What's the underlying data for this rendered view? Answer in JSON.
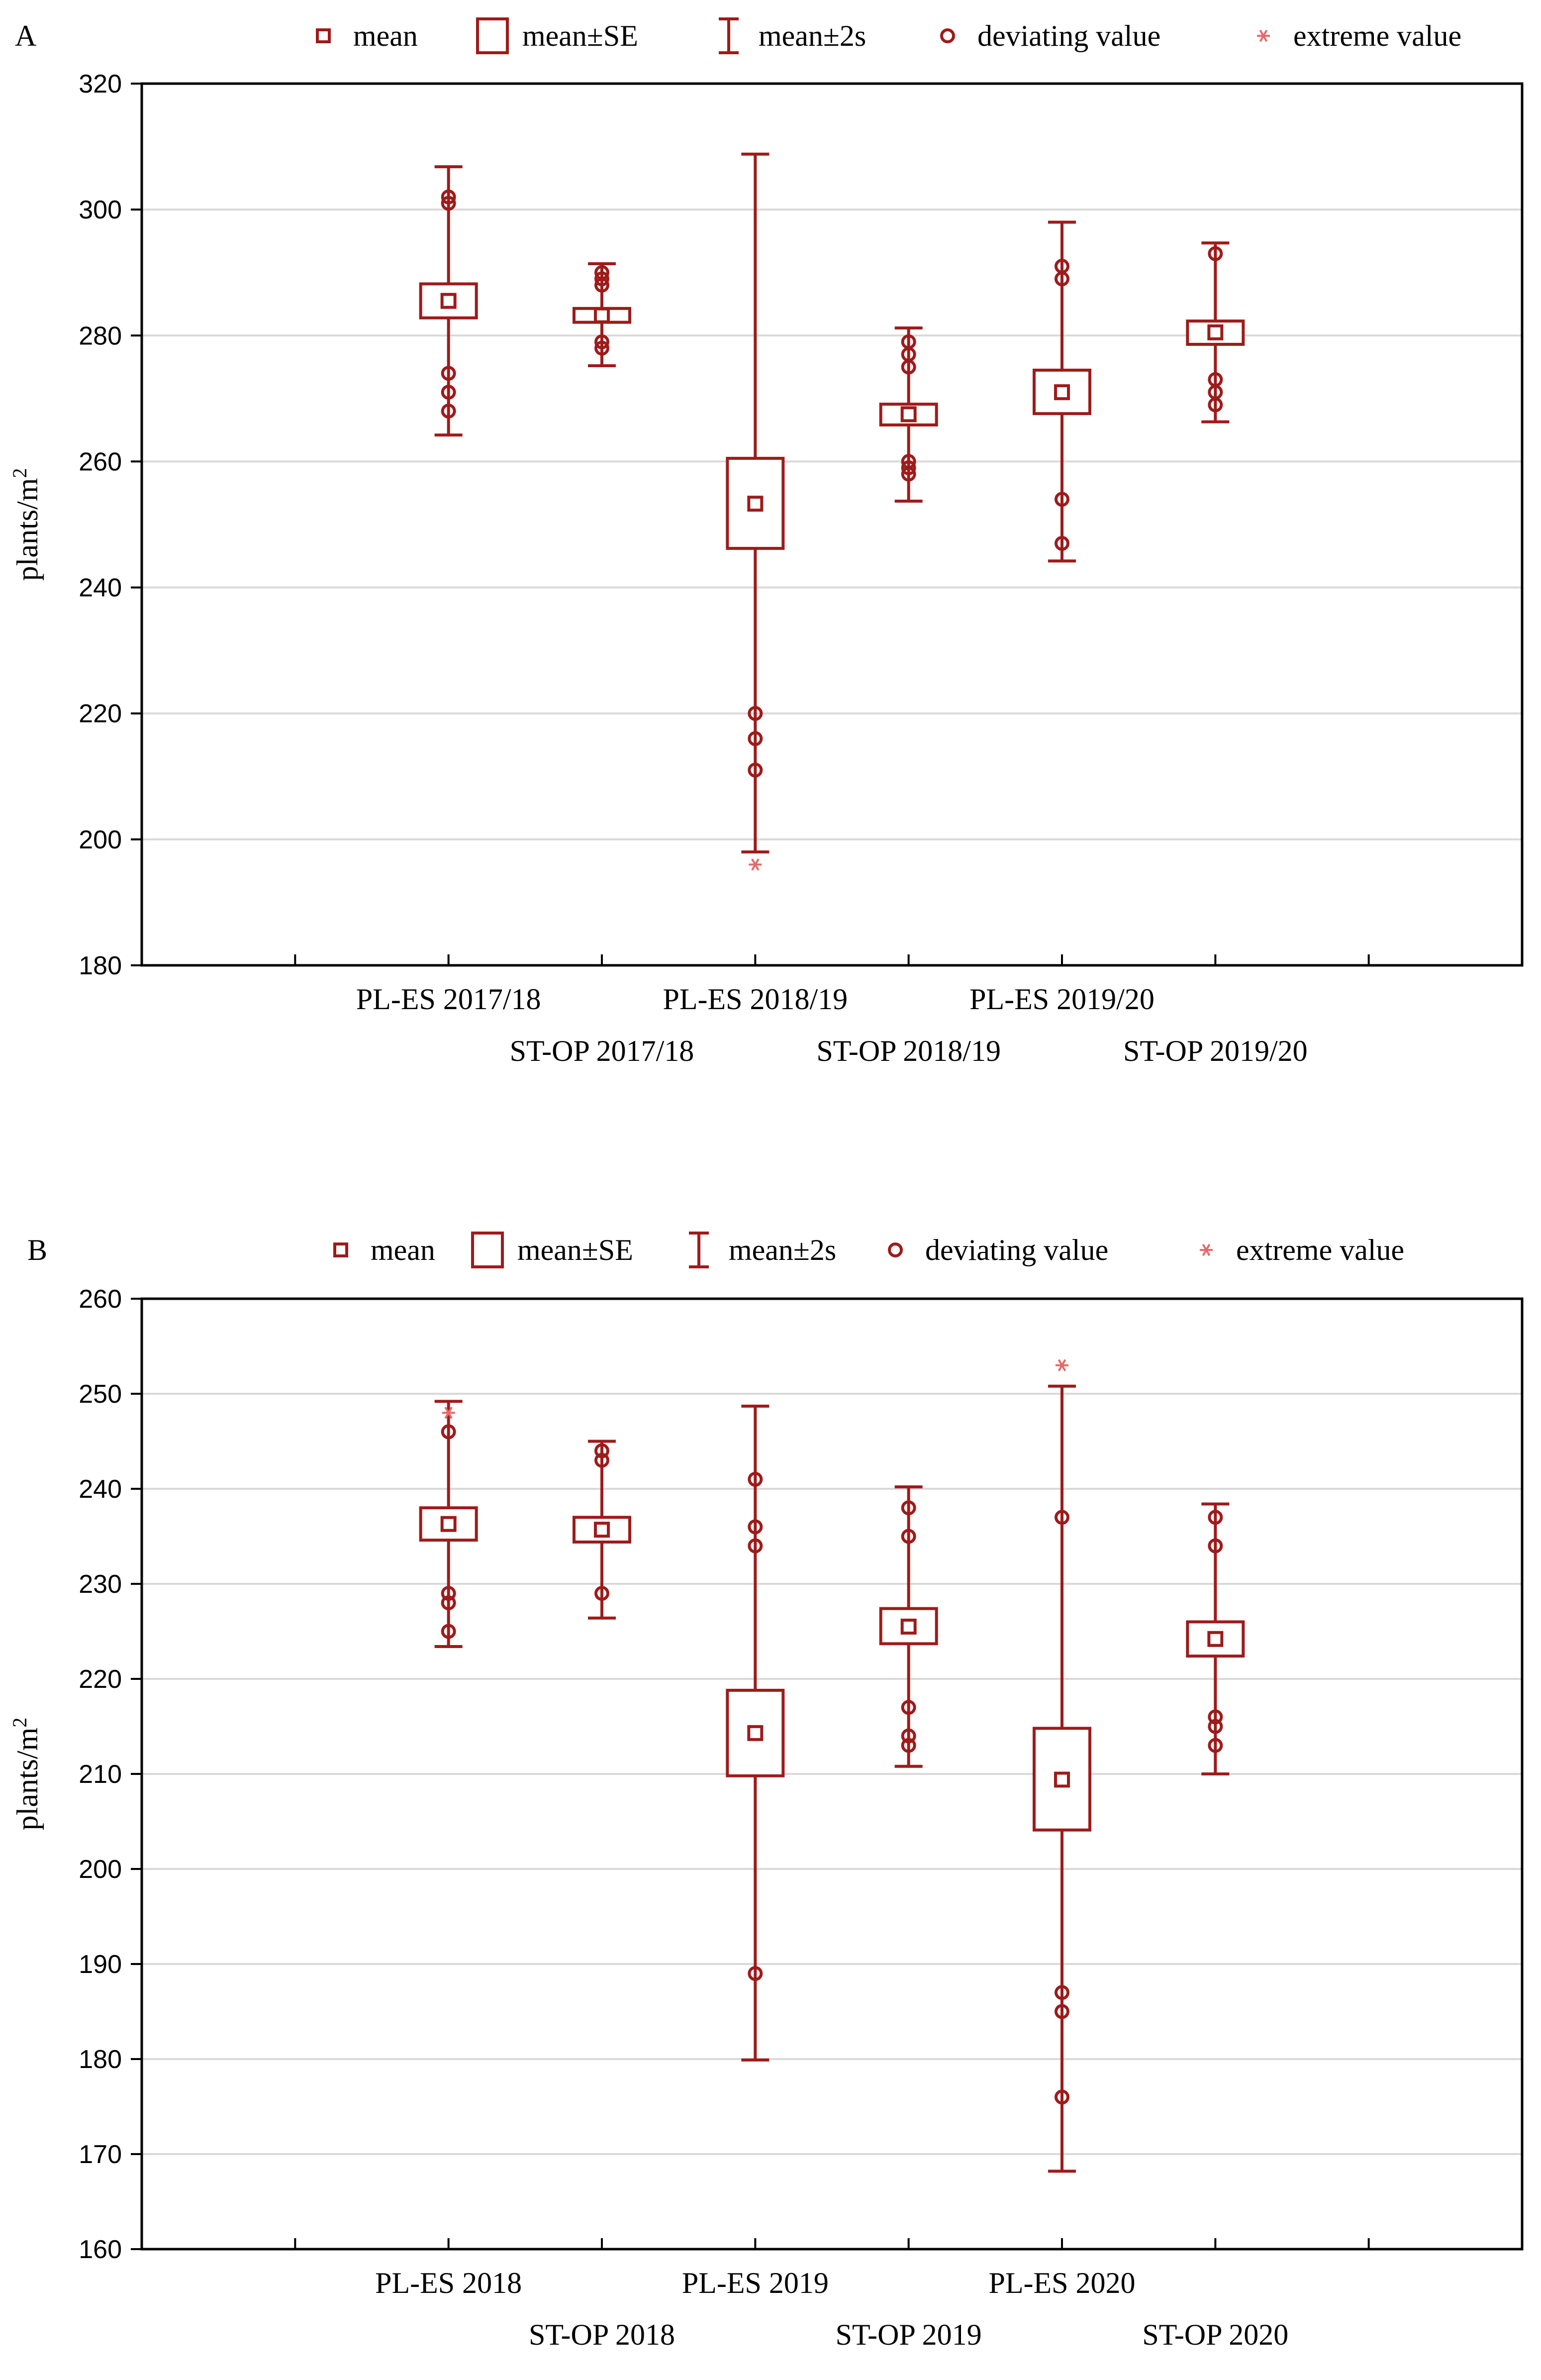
{
  "colors": {
    "mark": "#9e1b1b",
    "extreme": "#e46a6a",
    "grid": "#d9d9d9",
    "axis": "#000000"
  },
  "legend_items": [
    {
      "symbol": "mean-icon",
      "label": "mean"
    },
    {
      "symbol": "box-icon",
      "label": "mean±SE"
    },
    {
      "symbol": "whisker-icon",
      "label": "mean±2s"
    },
    {
      "symbol": "circle-icon",
      "label": "deviating value"
    },
    {
      "symbol": "asterisk-icon",
      "label": "extreme value"
    }
  ],
  "chart_data": [
    {
      "panel_label": "A",
      "type": "box",
      "ylabel": "plants/m",
      "ylabel_sup": "2",
      "ylim": [
        180,
        320
      ],
      "yticks": [
        180,
        200,
        220,
        240,
        260,
        280,
        300,
        320
      ],
      "grid": "horizontal",
      "legend_position": "top",
      "categories": [
        "PL-ES 2017/18",
        "ST-OP 2017/18",
        "PL-ES 2018/19",
        "ST-OP 2018/19",
        "PL-ES 2019/20",
        "ST-OP 2019/20"
      ],
      "groups": [
        {
          "mean": 285.5,
          "se_low": 282.8,
          "se_high": 288.2,
          "s2_low": 264.2,
          "s2_high": 306.8,
          "deviating": [
            302,
            301,
            274,
            271,
            268
          ],
          "extreme": []
        },
        {
          "mean": 283.2,
          "se_low": 282.1,
          "se_high": 284.3,
          "s2_low": 275.2,
          "s2_high": 291.4,
          "deviating": [
            290,
            289,
            288,
            279,
            278
          ],
          "extreme": []
        },
        {
          "mean": 253.3,
          "se_low": 246.2,
          "se_high": 260.5,
          "s2_low": 198.0,
          "s2_high": 308.8,
          "deviating": [
            220,
            216,
            211
          ],
          "extreme": [
            196
          ]
        },
        {
          "mean": 267.5,
          "se_low": 265.8,
          "se_high": 269.1,
          "s2_low": 253.7,
          "s2_high": 281.2,
          "deviating": [
            279,
            277,
            275,
            260,
            259,
            258
          ],
          "extreme": []
        },
        {
          "mean": 271.0,
          "se_low": 267.6,
          "se_high": 274.5,
          "s2_low": 244.2,
          "s2_high": 298.0,
          "deviating": [
            291,
            289,
            254,
            247
          ],
          "extreme": []
        },
        {
          "mean": 280.5,
          "se_low": 278.6,
          "se_high": 282.3,
          "s2_low": 266.3,
          "s2_high": 294.7,
          "deviating": [
            293,
            273,
            271,
            269
          ],
          "extreme": []
        }
      ]
    },
    {
      "panel_label": "B",
      "type": "box",
      "ylabel": "plants/m",
      "ylabel_sup": "2",
      "ylim": [
        160,
        260
      ],
      "yticks": [
        160,
        170,
        180,
        190,
        200,
        210,
        220,
        230,
        240,
        250,
        260
      ],
      "grid": "horizontal",
      "legend_position": "top",
      "categories": [
        "PL-ES 2018",
        "ST-OP 2018",
        "PL-ES 2019",
        "ST-OP 2019",
        "PL-ES 2020",
        "ST-OP 2020"
      ],
      "groups": [
        {
          "mean": 236.3,
          "se_low": 234.6,
          "se_high": 238.0,
          "s2_low": 223.4,
          "s2_high": 249.2,
          "deviating": [
            246,
            229,
            228,
            225
          ],
          "extreme": [
            248
          ]
        },
        {
          "mean": 235.7,
          "se_low": 234.4,
          "se_high": 237.0,
          "s2_low": 226.4,
          "s2_high": 245.0,
          "deviating": [
            244,
            243,
            229
          ],
          "extreme": []
        },
        {
          "mean": 214.3,
          "se_low": 209.8,
          "se_high": 218.8,
          "s2_low": 179.9,
          "s2_high": 248.7,
          "deviating": [
            241,
            236,
            234,
            189
          ],
          "extreme": []
        },
        {
          "mean": 225.5,
          "se_low": 223.7,
          "se_high": 227.4,
          "s2_low": 210.8,
          "s2_high": 240.2,
          "deviating": [
            238,
            235,
            217,
            214,
            213
          ],
          "extreme": []
        },
        {
          "mean": 209.4,
          "se_low": 204.1,
          "se_high": 214.8,
          "s2_low": 168.2,
          "s2_high": 250.8,
          "deviating": [
            237,
            187,
            185,
            176
          ],
          "extreme": [
            253
          ]
        },
        {
          "mean": 224.2,
          "se_low": 222.4,
          "se_high": 226.0,
          "s2_low": 210.0,
          "s2_high": 238.4,
          "deviating": [
            237,
            234,
            216,
            215,
            213
          ],
          "extreme": []
        }
      ]
    }
  ]
}
